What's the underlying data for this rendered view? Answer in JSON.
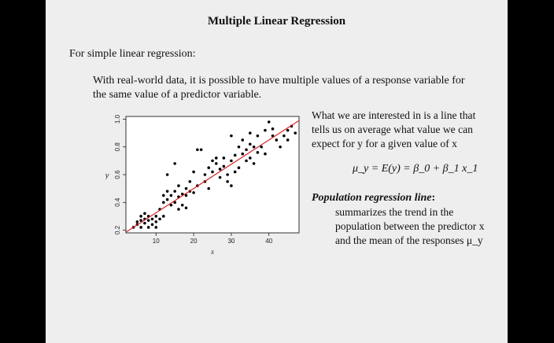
{
  "slide": {
    "title": "Multiple Linear Regression",
    "intro": "For simple linear regression:",
    "body_lines": [
      "With real-world data, it is possible to have multiple values of a response variable for",
      "the same value of a predictor variable."
    ],
    "right_lines": [
      "What we are interested in is a line that",
      "tells us on average what value we can",
      "expect for y for a given value of x"
    ],
    "equation": "μ_y = E(y) = β_0 + β_1 x_1",
    "pop_title": "Population regression line",
    "pop_title_suffix": ":",
    "pop_desc": [
      "summarizes the trend in the",
      "population between the predictor x",
      "and the mean of the responses μ_y"
    ]
  },
  "chart_data": {
    "type": "scatter",
    "xlabel": "x",
    "ylabel": "y",
    "xlim": [
      2,
      48
    ],
    "ylim": [
      0.18,
      1.02
    ],
    "xticks": [
      10,
      20,
      30,
      40
    ],
    "yticks": [
      0.2,
      0.4,
      0.6,
      0.8,
      1.0
    ],
    "ytick_labels": [
      "0.2",
      "0.4",
      "0.6",
      "0.8",
      "1.0"
    ],
    "line_color": "#d62728",
    "point_color": "#000000",
    "regression_line": {
      "intercept": 0.15,
      "slope": 0.0175
    },
    "points": [
      [
        4,
        0.22
      ],
      [
        5,
        0.24
      ],
      [
        5,
        0.26
      ],
      [
        6,
        0.22
      ],
      [
        6,
        0.27
      ],
      [
        6,
        0.3
      ],
      [
        7,
        0.25
      ],
      [
        7,
        0.28
      ],
      [
        7,
        0.32
      ],
      [
        8,
        0.22
      ],
      [
        8,
        0.27
      ],
      [
        8,
        0.3
      ],
      [
        9,
        0.28
      ],
      [
        9,
        0.24
      ],
      [
        10,
        0.26
      ],
      [
        10,
        0.3
      ],
      [
        11,
        0.28
      ],
      [
        11,
        0.35
      ],
      [
        12,
        0.3
      ],
      [
        12,
        0.4
      ],
      [
        12,
        0.45
      ],
      [
        13,
        0.42
      ],
      [
        13,
        0.48
      ],
      [
        14,
        0.38
      ],
      [
        14,
        0.45
      ],
      [
        15,
        0.4
      ],
      [
        15,
        0.48
      ],
      [
        16,
        0.35
      ],
      [
        16,
        0.44
      ],
      [
        16,
        0.52
      ],
      [
        17,
        0.46
      ],
      [
        17,
        0.38
      ],
      [
        18,
        0.45
      ],
      [
        18,
        0.5
      ],
      [
        19,
        0.48
      ],
      [
        19,
        0.55
      ],
      [
        20,
        0.47
      ],
      [
        20,
        0.62
      ],
      [
        21,
        0.52
      ],
      [
        21,
        0.78
      ],
      [
        22,
        0.78
      ],
      [
        23,
        0.55
      ],
      [
        23,
        0.6
      ],
      [
        24,
        0.5
      ],
      [
        24,
        0.65
      ],
      [
        25,
        0.62
      ],
      [
        25,
        0.7
      ],
      [
        26,
        0.68
      ],
      [
        26,
        0.72
      ],
      [
        27,
        0.58
      ],
      [
        27,
        0.64
      ],
      [
        28,
        0.66
      ],
      [
        28,
        0.72
      ],
      [
        29,
        0.55
      ],
      [
        29,
        0.6
      ],
      [
        30,
        0.88
      ],
      [
        30,
        0.7
      ],
      [
        31,
        0.62
      ],
      [
        31,
        0.74
      ],
      [
        32,
        0.65
      ],
      [
        32,
        0.8
      ],
      [
        33,
        0.75
      ],
      [
        33,
        0.85
      ],
      [
        34,
        0.7
      ],
      [
        34,
        0.78
      ],
      [
        35,
        0.72
      ],
      [
        35,
        0.82
      ],
      [
        36,
        0.68
      ],
      [
        36,
        0.8
      ],
      [
        37,
        0.76
      ],
      [
        37,
        0.88
      ],
      [
        38,
        0.8
      ],
      [
        39,
        0.92
      ],
      [
        39,
        0.75
      ],
      [
        40,
        0.98
      ],
      [
        41,
        0.88
      ],
      [
        42,
        0.85
      ],
      [
        43,
        0.8
      ],
      [
        44,
        0.88
      ],
      [
        45,
        0.92
      ],
      [
        45,
        0.85
      ],
      [
        46,
        0.95
      ],
      [
        47,
        0.9
      ],
      [
        13,
        0.6
      ],
      [
        15,
        0.68
      ],
      [
        30,
        0.52
      ],
      [
        35,
        0.9
      ],
      [
        41,
        0.93
      ],
      [
        18,
        0.36
      ],
      [
        10,
        0.22
      ]
    ]
  }
}
